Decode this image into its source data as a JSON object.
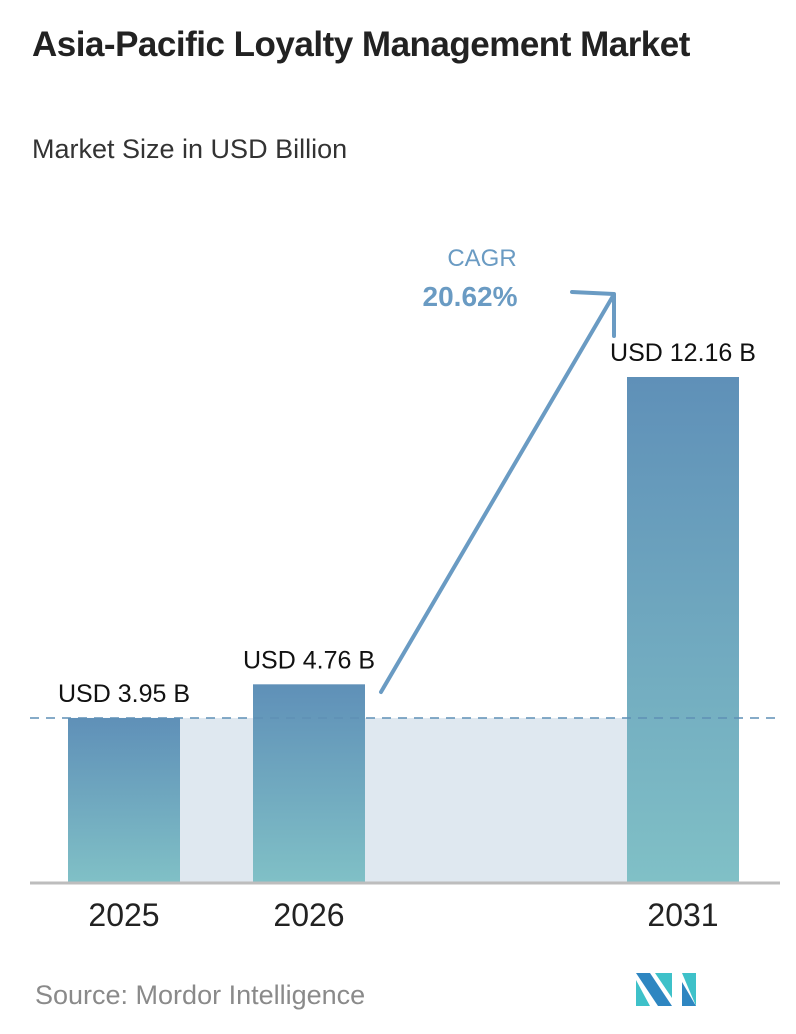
{
  "chart_data": {
    "type": "bar",
    "title": "Asia-Pacific Loyalty Management Market",
    "subtitle": "Market Size in USD Billion",
    "categories": [
      "2025",
      "2026",
      "2031"
    ],
    "values": [
      3.95,
      4.76,
      12.16
    ],
    "data_labels": [
      "USD 3.95 B",
      "USD 4.76 B",
      "USD 12.16 B"
    ],
    "ylim": [
      0,
      12.16
    ],
    "grid": false,
    "annotation": {
      "label": "CAGR",
      "value": "20.62%"
    },
    "colors": {
      "bar_top": "#5f90b8",
      "bar_bottom": "#80c0c6",
      "band": "#dfe8f0",
      "accent": "#6a9bc3"
    }
  },
  "source": "Source:  Mordor Intelligence",
  "logo_text": "Mordor Intelligence"
}
